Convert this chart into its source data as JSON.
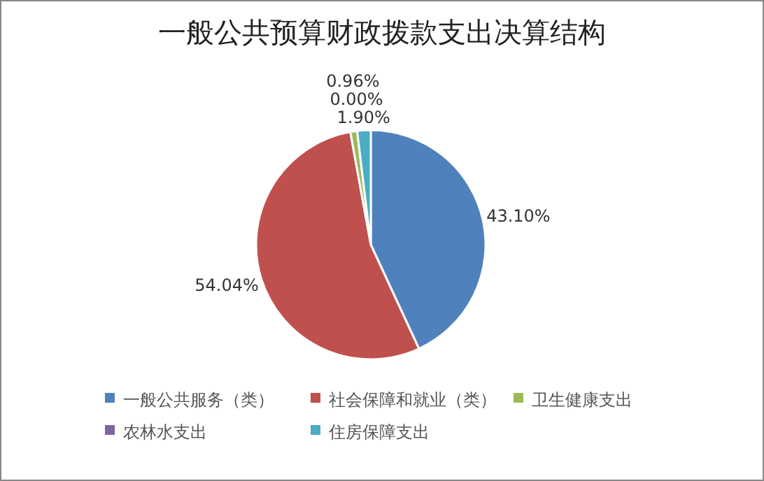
{
  "chart_data": {
    "type": "pie",
    "title": "一般公共预算财政拨款支出决算结构",
    "categories": [
      "一般公共服务（类）",
      "社会保障和就业（类）",
      "卫生健康支出",
      "农林水支出",
      "住房保障支出"
    ],
    "values": [
      43.1,
      54.04,
      0.96,
      0.0,
      1.9
    ],
    "colors": [
      "#4f81bd",
      "#c0504d",
      "#9bbb59",
      "#8064a2",
      "#4bacc6"
    ],
    "value_labels": [
      "43.10%",
      "54.04%",
      "0.96%",
      "0.00%",
      "1.90%"
    ],
    "legend": "bottom"
  }
}
